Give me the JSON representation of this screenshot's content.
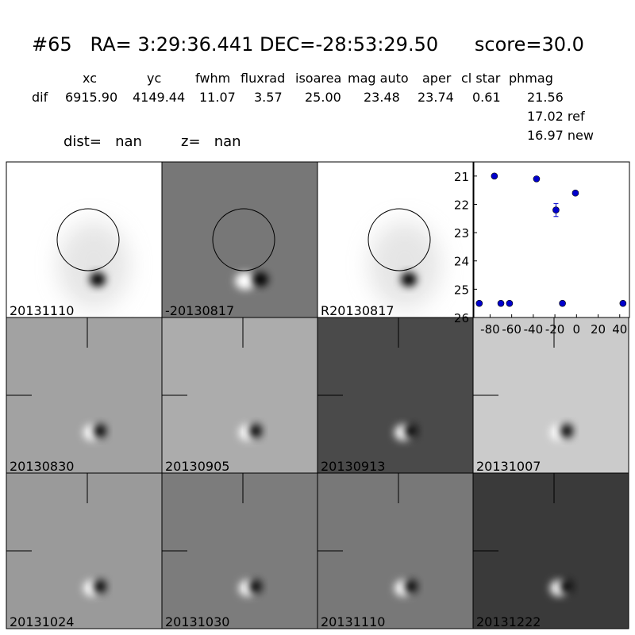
{
  "header": {
    "title": "#65   RA= 3:29:36.441 DEC=-28:53:29.50      score=30.0",
    "columns": [
      "xc",
      "yc",
      "fwhm",
      "fluxrad",
      "isoarea",
      "mag auto",
      "aper",
      "cl star",
      "phmag"
    ],
    "row_label": "dif",
    "row": [
      "6915.90",
      "4149.44",
      "11.07",
      "3.57",
      "25.00",
      "23.48",
      "23.74",
      "0.61",
      "21.56"
    ],
    "extra": [
      "17.02 ref",
      "16.97 new"
    ],
    "dist": "dist=   nan",
    "z": "z=   nan"
  },
  "panels": [
    {
      "label": "20131110",
      "color": "#ffffff",
      "circle": true
    },
    {
      "label": "-20130817",
      "color": "#777777",
      "circle": true
    },
    {
      "label": "R20130817",
      "color": "#ffffff",
      "circle": true
    },
    null,
    {
      "label": "20130830",
      "color": "#a2a2a2"
    },
    {
      "label": "20130905",
      "color": "#acacac"
    },
    {
      "label": "20130913",
      "color": "#4a4a4a"
    },
    {
      "label": "20131007",
      "color": "#cbcbcb"
    },
    {
      "label": "20131024",
      "color": "#9a9a9a"
    },
    {
      "label": "20131030",
      "color": "#7c7c7c"
    },
    {
      "label": "20131110",
      "color": "#787878",
      "label_color": "#ff0000"
    },
    {
      "label": "20131222",
      "color": "#3a3a3a"
    }
  ],
  "chart_data": {
    "type": "scatter",
    "color": "#0000cc",
    "x": [
      -90,
      -76,
      -70,
      -62,
      -37,
      -19,
      -13,
      -1,
      43
    ],
    "y": [
      25.5,
      21.0,
      25.5,
      25.5,
      21.1,
      22.2,
      25.5,
      21.6,
      25.5
    ],
    "errors": [
      null,
      null,
      null,
      null,
      null,
      0.23,
      null,
      null,
      null
    ],
    "xlim": [
      -95,
      49
    ],
    "ylim": [
      26,
      20.5
    ],
    "xticks": [
      -80,
      -60,
      -40,
      -20,
      0,
      20,
      40
    ],
    "yticks": [
      21,
      22,
      23,
      24,
      25,
      26
    ]
  }
}
